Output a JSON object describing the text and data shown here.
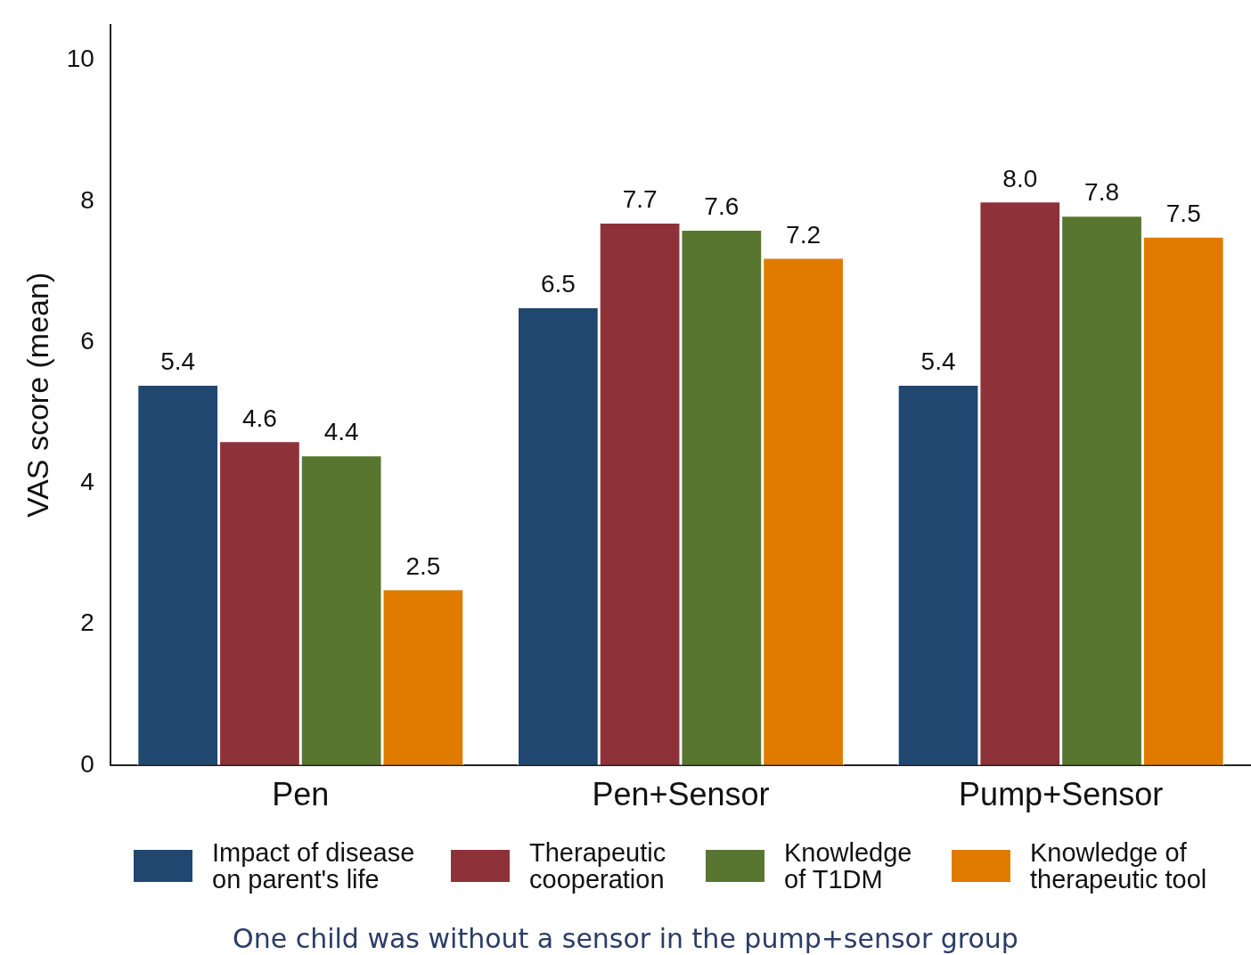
{
  "chart_data": {
    "type": "bar",
    "ylabel": "VAS score (mean)",
    "categories": [
      "Pen",
      "Pen+Sensor",
      "Pump+Sensor"
    ],
    "series": [
      {
        "name": "Impact of disease on parent's life",
        "color": "#1f4770",
        "values": [
          5.4,
          6.5,
          5.4
        ],
        "value_labels": [
          "5.4",
          "6.5",
          "5.4"
        ]
      },
      {
        "name": "Therapeutic cooperation",
        "color": "#8e323a",
        "values": [
          4.6,
          7.7,
          8.0
        ],
        "value_labels": [
          "4.6",
          "7.7",
          "8.0"
        ]
      },
      {
        "name": "Knowledge of T1DM",
        "color": "#58762f",
        "values": [
          4.4,
          7.6,
          7.8
        ],
        "value_labels": [
          "4.4",
          "7.6",
          "7.8"
        ]
      },
      {
        "name": "Knowledge of therapeutic tool",
        "color": "#e07b00",
        "values": [
          2.5,
          7.2,
          7.5
        ],
        "value_labels": [
          "2.5",
          "7.2",
          "7.5"
        ]
      }
    ],
    "ylim": [
      0,
      10.5
    ],
    "yticks": [
      0,
      2,
      4,
      6,
      8,
      10
    ],
    "grid": false,
    "legend": "bottom",
    "annotations": [
      "One child was without a sensor in the pump+sensor group"
    ]
  }
}
